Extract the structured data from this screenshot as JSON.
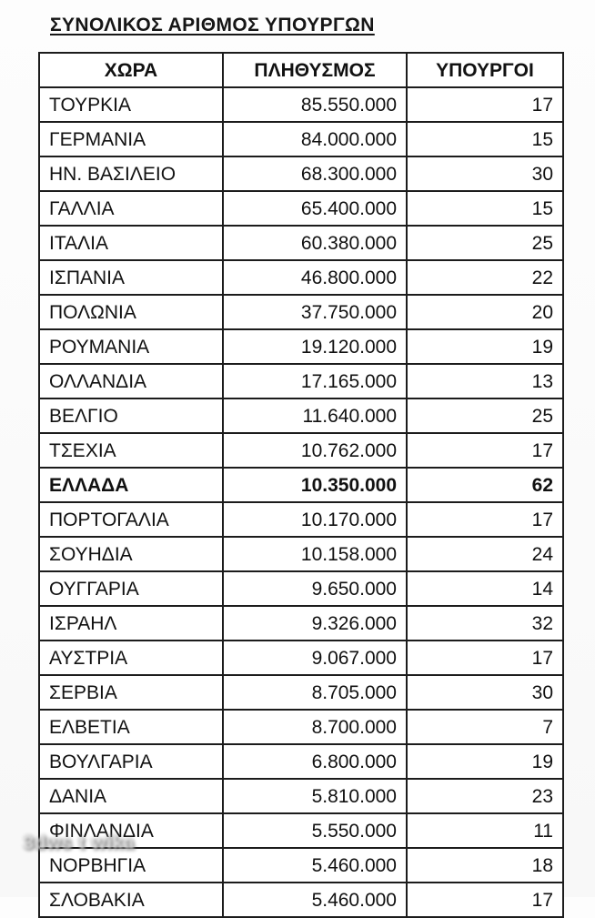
{
  "page": {
    "title": "ΣΥΝΟΛΙΚΟΣ ΑΡΙΘΜΟΣ ΥΠΟΥΡΓΩΝ"
  },
  "watermark": {
    "text": "3dws t wika"
  },
  "table": {
    "headers": {
      "country": "ΧΩΡΑ",
      "population": "ΠΛΗΘΥΣΜΟΣ",
      "ministers": "ΥΠΟΥΡΓΟΙ"
    },
    "rows": [
      {
        "country": "ΤΟΥΡΚΙΑ",
        "population": "85.550.000",
        "ministers": "17",
        "bold": false
      },
      {
        "country": "ΓΕΡΜΑΝΙΑ",
        "population": "84.000.000",
        "ministers": "15",
        "bold": false
      },
      {
        "country": "ΗΝ. ΒΑΣΙΛΕΙΟ",
        "population": "68.300.000",
        "ministers": "30",
        "bold": false
      },
      {
        "country": "ΓΑΛΛΙΑ",
        "population": "65.400.000",
        "ministers": "15",
        "bold": false
      },
      {
        "country": "ΙΤΑΛΙΑ",
        "population": "60.380.000",
        "ministers": "25",
        "bold": false
      },
      {
        "country": "ΙΣΠΑΝΙΑ",
        "population": "46.800.000",
        "ministers": "22",
        "bold": false
      },
      {
        "country": "ΠΟΛΩΝΙΑ",
        "population": "37.750.000",
        "ministers": "20",
        "bold": false
      },
      {
        "country": "ΡΟΥΜΑΝΙΑ",
        "population": "19.120.000",
        "ministers": "19",
        "bold": false
      },
      {
        "country": "ΟΛΛΑΝΔΙΑ",
        "population": "17.165.000",
        "ministers": "13",
        "bold": false
      },
      {
        "country": "ΒΕΛΓΙΟ",
        "population": "11.640.000",
        "ministers": "25",
        "bold": false
      },
      {
        "country": "ΤΣΕΧΙΑ",
        "population": "10.762.000",
        "ministers": "17",
        "bold": false
      },
      {
        "country": "ΕΛΛΑΔΑ",
        "population": "10.350.000",
        "ministers": "62",
        "bold": true
      },
      {
        "country": "ΠΟΡΤΟΓΑΛΙΑ",
        "population": "10.170.000",
        "ministers": "17",
        "bold": false
      },
      {
        "country": "ΣΟΥΗΔΙΑ",
        "population": "10.158.000",
        "ministers": "24",
        "bold": false
      },
      {
        "country": "ΟΥΓΓΑΡΙΑ",
        "population": "9.650.000",
        "ministers": "14",
        "bold": false
      },
      {
        "country": "ΙΣΡΑΗΛ",
        "population": "9.326.000",
        "ministers": "32",
        "bold": false
      },
      {
        "country": "ΑΥΣΤΡΙΑ",
        "population": "9.067.000",
        "ministers": "17",
        "bold": false
      },
      {
        "country": "ΣΕΡΒΙΑ",
        "population": "8.705.000",
        "ministers": "30",
        "bold": false
      },
      {
        "country": "ΕΛΒΕΤΙΑ",
        "population": "8.700.000",
        "ministers": "7",
        "bold": false
      },
      {
        "country": "ΒΟΥΛΓΑΡΙΑ",
        "population": "6.800.000",
        "ministers": "19",
        "bold": false
      },
      {
        "country": "ΔΑΝΙΑ",
        "population": "5.810.000",
        "ministers": "23",
        "bold": false
      },
      {
        "country": "ΦΙΝΛΑΝΔΙΑ",
        "population": "5.550.000",
        "ministers": "11",
        "bold": false
      },
      {
        "country": "ΝΟΡΒΗΓΙΑ",
        "population": "5.460.000",
        "ministers": "18",
        "bold": false
      },
      {
        "country": "ΣΛΟΒΑΚΙΑ",
        "population": "5.460.000",
        "ministers": "17",
        "bold": false
      }
    ]
  }
}
